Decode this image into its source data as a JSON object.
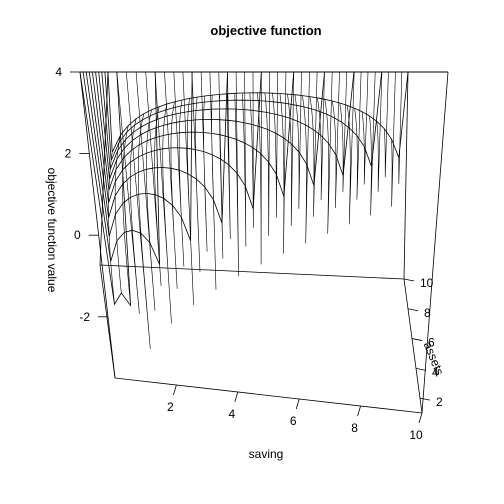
{
  "chart_data": {
    "type": "surface3d",
    "title": "objective function",
    "xlabel": "saving",
    "ylabel": "assets",
    "zlabel": "objective function value",
    "xlim": [
      0,
      10
    ],
    "ylim": [
      1,
      10
    ],
    "zlim": [
      -3.5,
      4
    ],
    "x_ticks": [
      2,
      4,
      6,
      8,
      10
    ],
    "y_ticks": [
      2,
      4,
      6,
      8,
      10
    ],
    "z_ticks": [
      -2,
      0,
      2,
      4
    ],
    "x_tick_labels": [
      "2",
      "4",
      "6",
      "8",
      "10"
    ],
    "y_tick_labels": [
      "2",
      "4",
      "6",
      "8",
      "10"
    ],
    "z_tick_labels": [
      "-2",
      "0",
      "2",
      "4"
    ],
    "assets_values": [
      1,
      2,
      3,
      4,
      5,
      6,
      7,
      8,
      9,
      10
    ],
    "saving_grid_points": 40,
    "surface_formula": "log(assets - saving) + log(saving), clipped at the z axis range",
    "grid": false,
    "box": true
  }
}
